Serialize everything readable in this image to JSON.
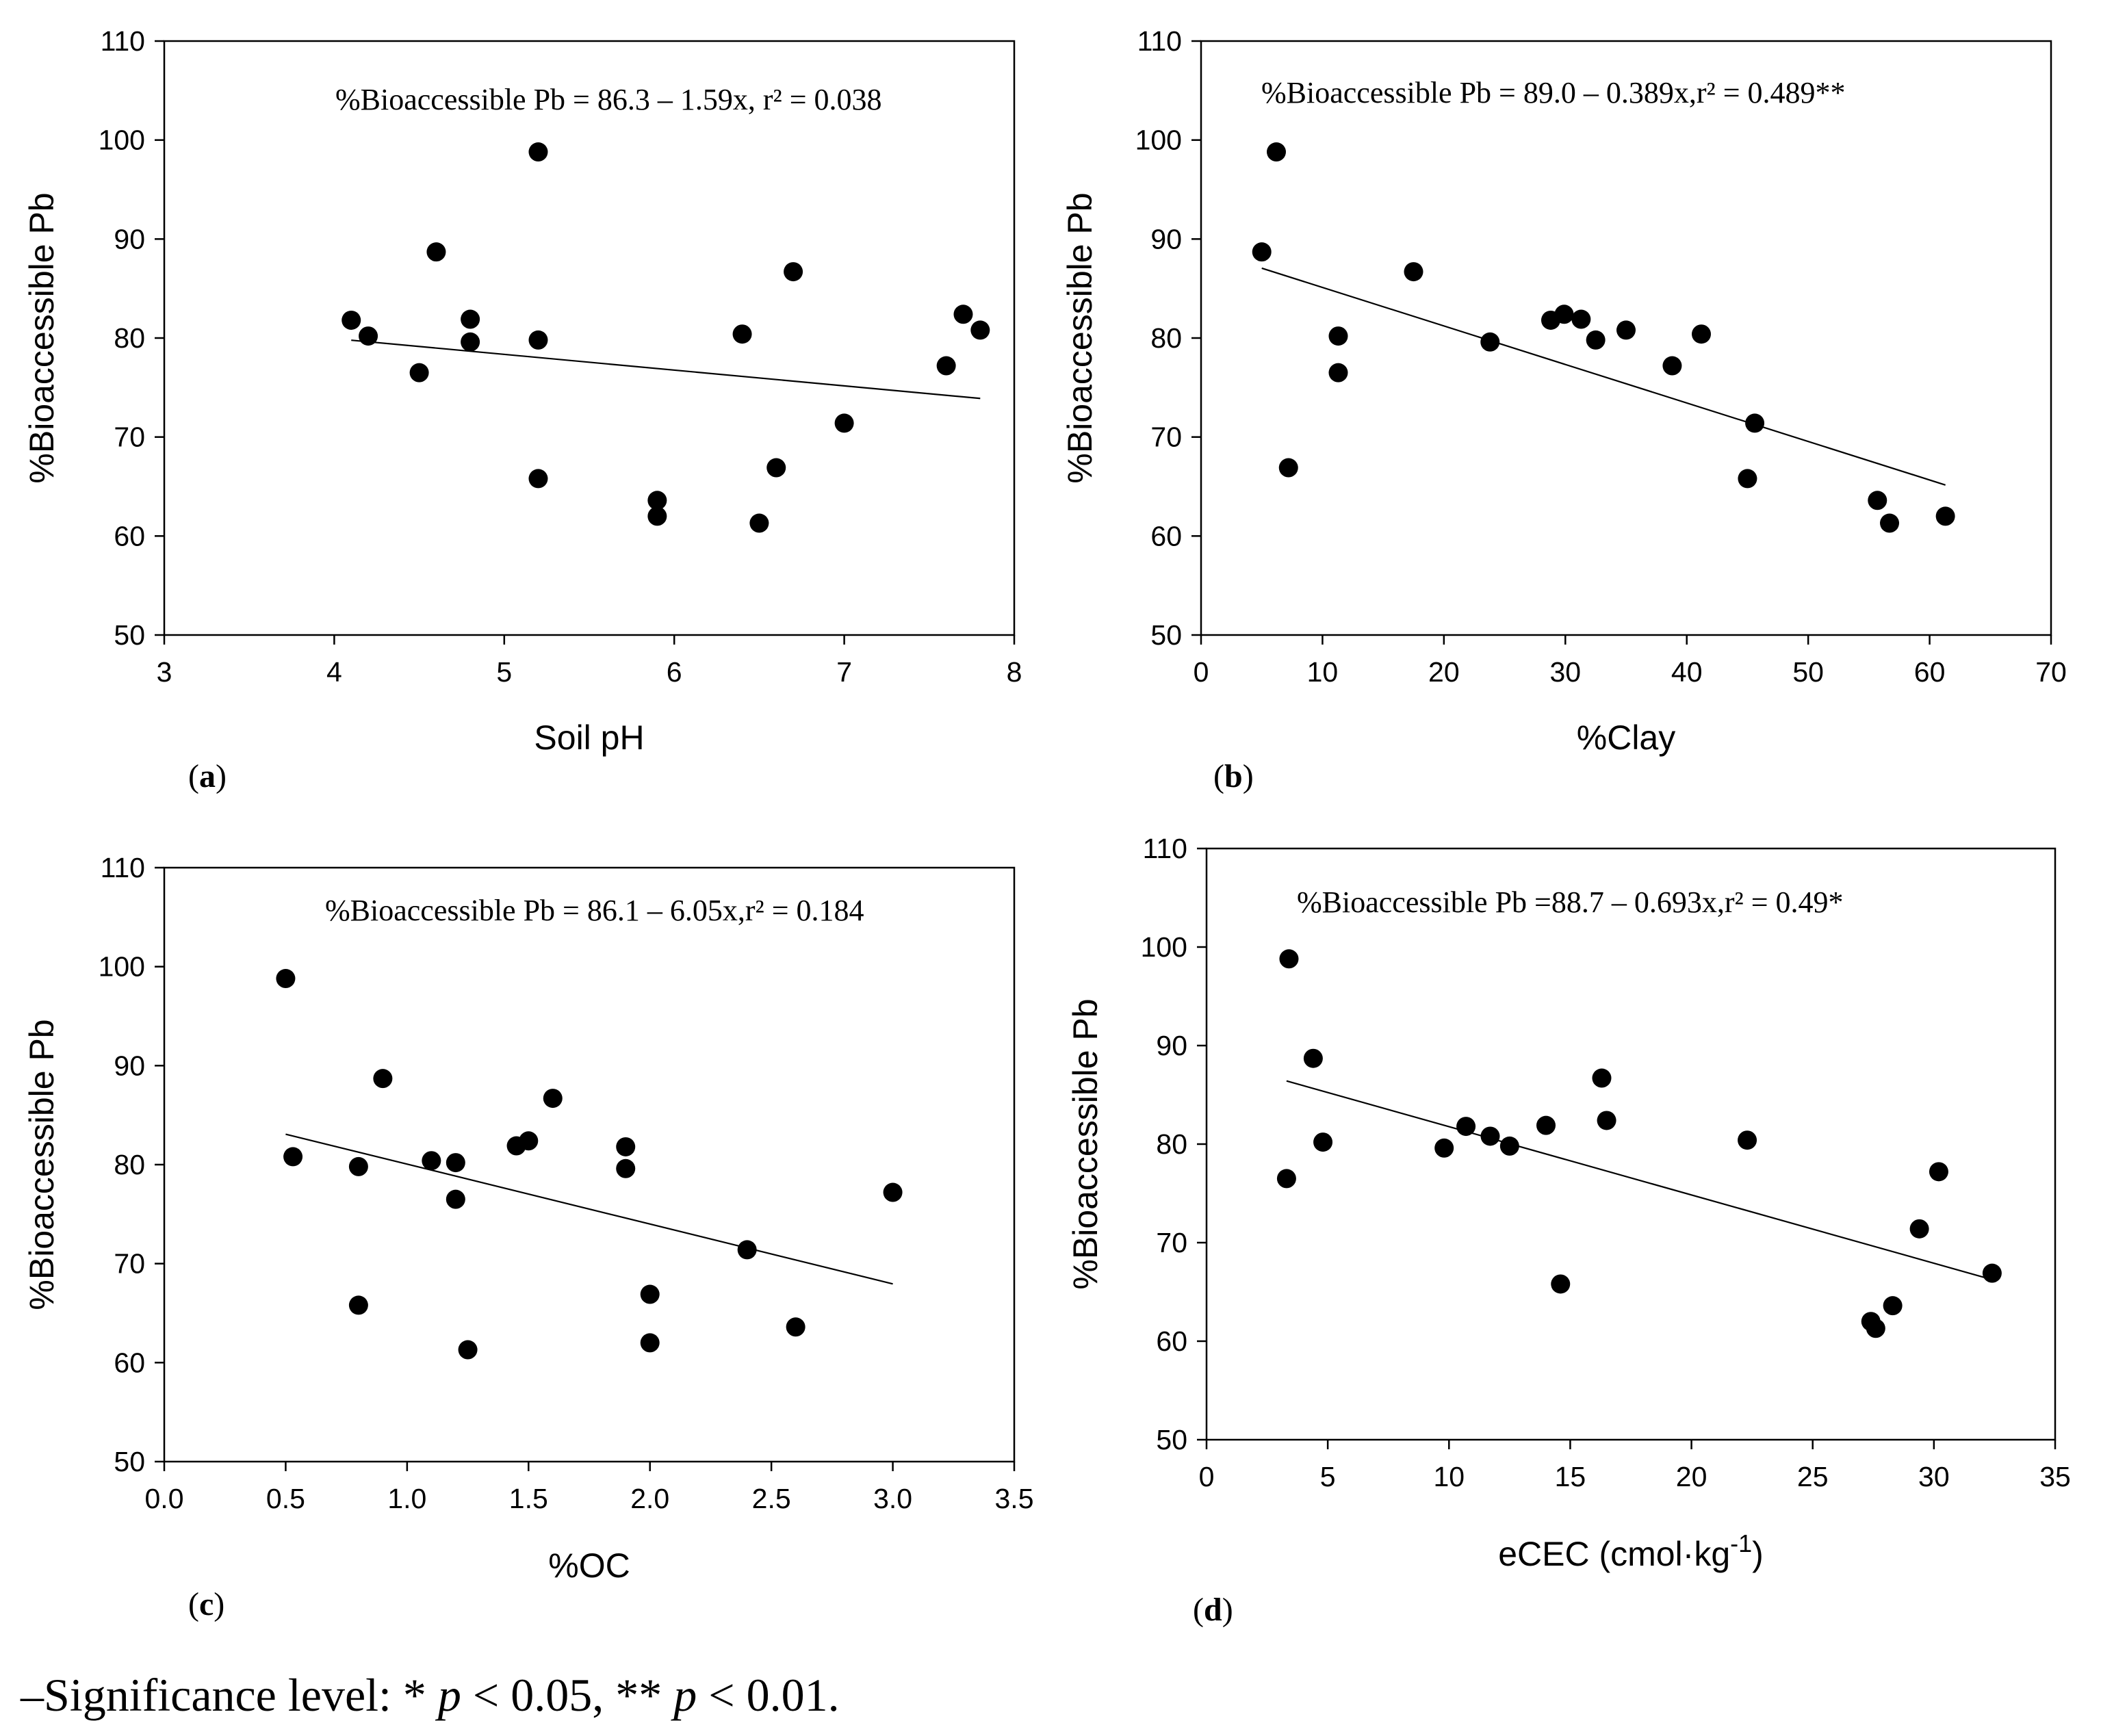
{
  "chart_data": [
    {
      "type": "scatter",
      "panel_label": "a",
      "xlabel": "Soil pH",
      "ylabel": "%Bioaccessible Pb",
      "xlim": [
        3,
        8
      ],
      "ylim": [
        50,
        110
      ],
      "xticks": [
        "3",
        "4",
        "5",
        "6",
        "7",
        "8"
      ],
      "yticks": [
        "50",
        "60",
        "70",
        "80",
        "90",
        "100",
        "110"
      ],
      "equation": "%Bioaccessible Pb = 86.3 – 1.59x, r² = 0.038",
      "points": {
        "x": [
          4.1,
          4.2,
          4.5,
          4.6,
          4.8,
          4.8,
          5.2,
          5.2,
          5.2,
          5.9,
          5.9,
          6.4,
          6.5,
          6.6,
          6.7,
          7.0,
          7.6,
          7.7,
          7.8
        ],
        "y": [
          81.8,
          80.2,
          76.5,
          88.7,
          81.9,
          79.6,
          98.8,
          79.8,
          65.8,
          63.6,
          62.0,
          80.4,
          61.3,
          66.9,
          86.7,
          71.4,
          77.2,
          82.4,
          80.8
        ]
      },
      "fit": {
        "intercept": 86.3,
        "slope": -1.59,
        "x_range": [
          4.1,
          7.8
        ]
      }
    },
    {
      "type": "scatter",
      "panel_label": "b",
      "xlabel": "%Clay",
      "ylabel": "%Bioaccessible Pb",
      "xlim": [
        0,
        70
      ],
      "ylim": [
        50,
        110
      ],
      "xticks": [
        "0",
        "10",
        "20",
        "30",
        "40",
        "50",
        "60",
        "70"
      ],
      "yticks": [
        "50",
        "60",
        "70",
        "80",
        "90",
        "100",
        "110"
      ],
      "equation": "%Bioaccessible Pb = 89.0 – 0.389x,r² = 0.489**",
      "points": {
        "x": [
          5.0,
          6.2,
          7.2,
          11.3,
          11.3,
          17.5,
          23.8,
          28.8,
          29.9,
          31.3,
          32.5,
          35.0,
          38.8,
          41.2,
          45.0,
          45.6,
          55.7,
          56.7,
          61.3
        ],
        "y": [
          88.7,
          98.8,
          66.9,
          80.2,
          76.5,
          86.7,
          79.6,
          81.8,
          82.4,
          81.9,
          79.8,
          80.8,
          77.2,
          80.4,
          65.8,
          71.4,
          63.6,
          61.3,
          62.0
        ]
      },
      "fit": {
        "intercept": 89.0,
        "slope": -0.389,
        "x_range": [
          5.0,
          61.3
        ]
      }
    },
    {
      "type": "scatter",
      "panel_label": "c",
      "xlabel": "%OC",
      "ylabel": "%Bioaccessible Pb",
      "xlim": [
        0,
        3.5
      ],
      "ylim": [
        50,
        110
      ],
      "xticks": [
        "0.0",
        "0.5",
        "1.0",
        "1.5",
        "2.0",
        "2.5",
        "3.0",
        "3.5"
      ],
      "yticks": [
        "50",
        "60",
        "70",
        "80",
        "90",
        "100",
        "110"
      ],
      "equation": "%Bioaccessible Pb = 86.1 – 6.05x,r² = 0.184",
      "points": {
        "x": [
          0.5,
          0.53,
          0.8,
          0.8,
          0.9,
          1.1,
          1.2,
          1.2,
          1.25,
          1.45,
          1.5,
          1.6,
          1.9,
          1.9,
          2.0,
          2.0,
          2.4,
          2.6,
          3.0
        ],
        "y": [
          98.8,
          80.8,
          79.8,
          65.8,
          88.7,
          80.4,
          80.2,
          76.5,
          61.3,
          81.9,
          82.4,
          86.7,
          81.8,
          79.6,
          66.9,
          62.0,
          71.4,
          63.6,
          77.2
        ]
      },
      "fit": {
        "intercept": 86.1,
        "slope": -6.05,
        "x_range": [
          0.5,
          3.0
        ]
      }
    },
    {
      "type": "scatter",
      "panel_label": "d",
      "xlabel_main": "eCEC (cmol·kg",
      "xlabel_sup": "-1",
      "xlabel_end": ")",
      "ylabel": "%Bioaccessible Pb",
      "xlim": [
        0,
        35
      ],
      "ylim": [
        50,
        110
      ],
      "xticks": [
        "0",
        "5",
        "10",
        "15",
        "20",
        "25",
        "30",
        "35"
      ],
      "yticks": [
        "50",
        "60",
        "70",
        "80",
        "90",
        "100",
        "110"
      ],
      "equation": "%Bioaccessible Pb =88.7 – 0.693x,r² = 0.49*",
      "points": {
        "x": [
          3.3,
          3.4,
          4.4,
          4.8,
          9.8,
          10.7,
          11.7,
          12.5,
          14.0,
          14.6,
          16.3,
          16.5,
          22.3,
          27.4,
          27.6,
          28.3,
          29.4,
          30.2,
          32.4
        ],
        "y": [
          76.5,
          98.8,
          88.7,
          80.2,
          79.6,
          81.8,
          80.8,
          79.8,
          81.9,
          65.8,
          86.7,
          82.4,
          80.4,
          62.0,
          61.3,
          63.6,
          71.4,
          77.2,
          66.9
        ]
      },
      "fit": {
        "intercept": 88.7,
        "slope": -0.693,
        "x_range": [
          3.3,
          32.4
        ]
      }
    }
  ],
  "footnote": {
    "prefix": "–Significance level: * ",
    "p1": "p",
    "mid": " < 0.05, ** ",
    "p2": "p",
    "suffix": " < 0.01."
  }
}
